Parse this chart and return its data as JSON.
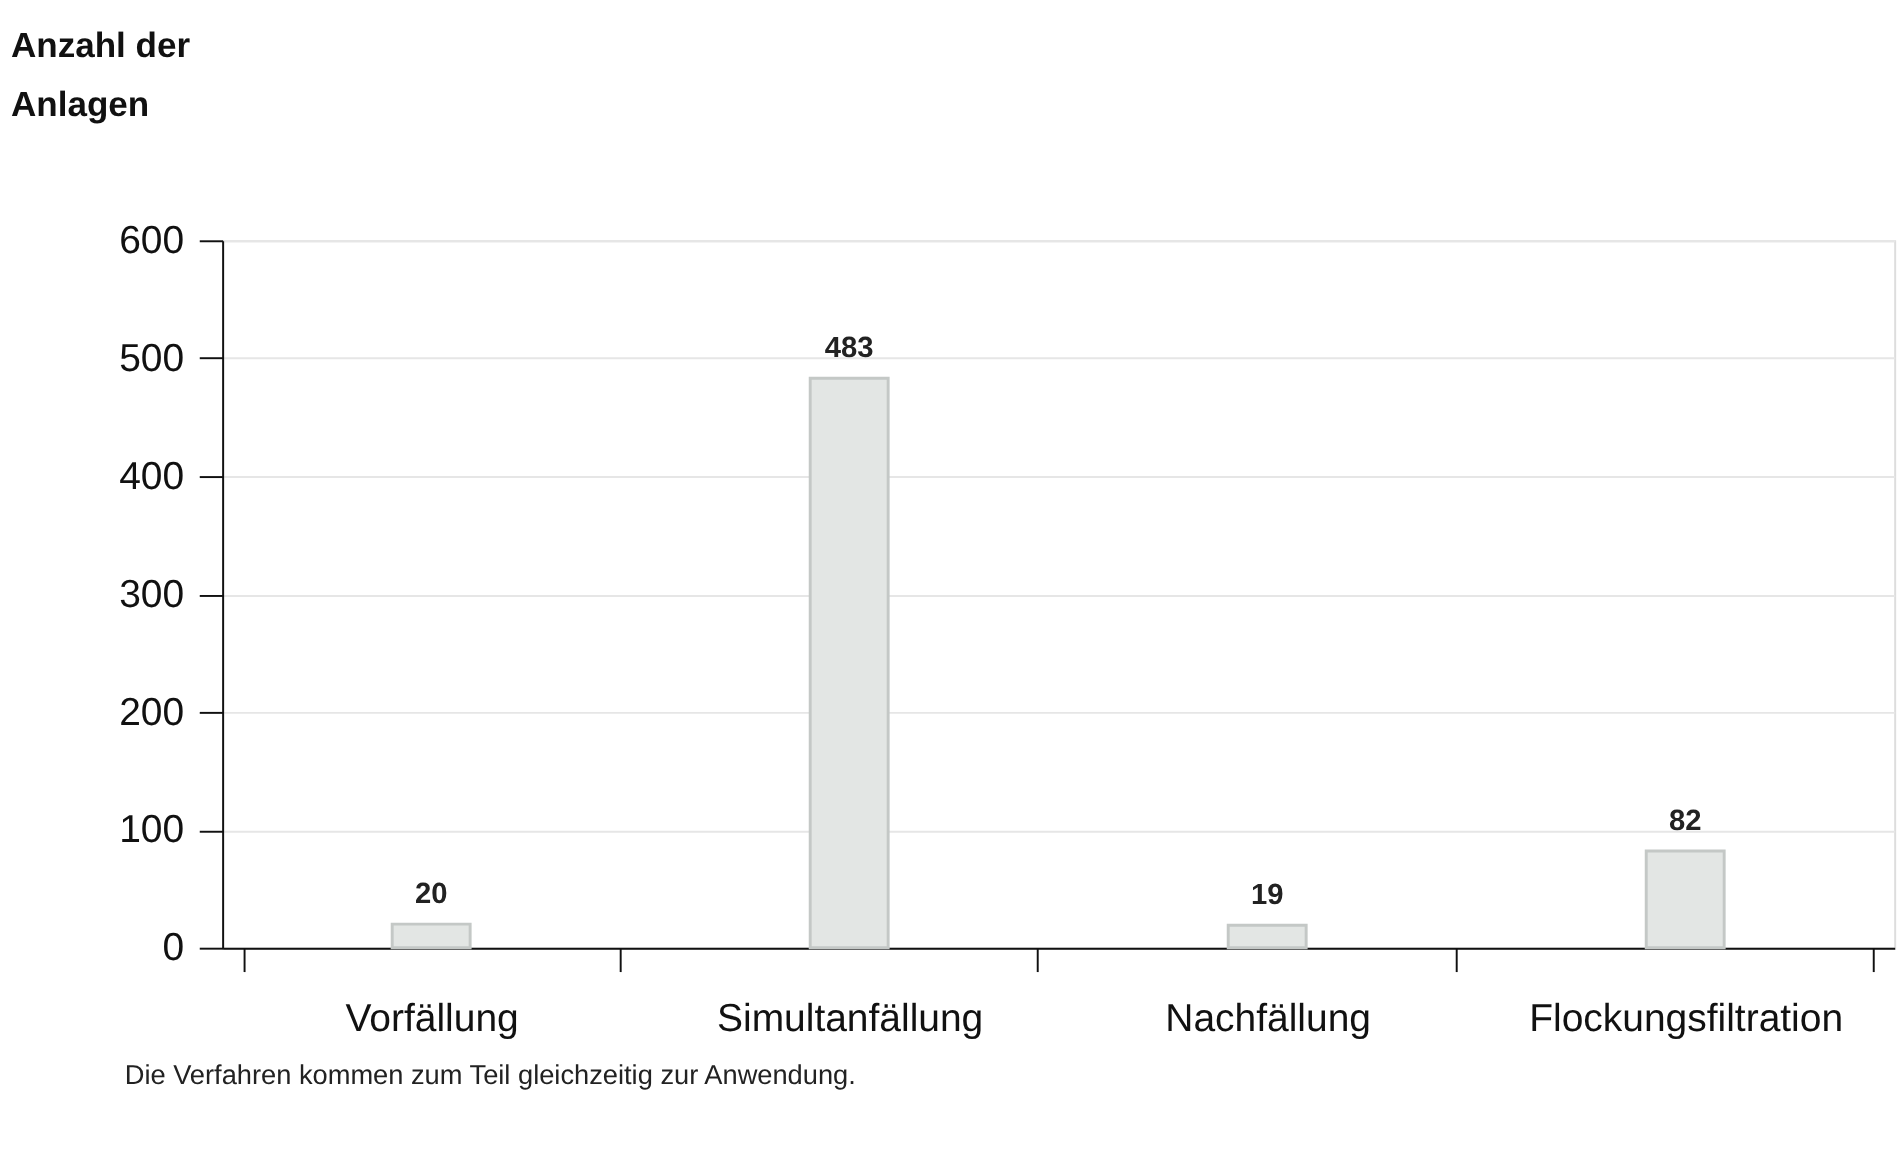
{
  "chart_data": {
    "type": "bar",
    "title": "Anzahl der Anlagen",
    "categories": [
      "Vorfällung",
      "Simultanfällung",
      "Nachfällung",
      "Flockungsfiltration"
    ],
    "values": [
      20,
      483,
      19,
      82
    ],
    "color": "#e3e6e4",
    "ylim": [
      0,
      600
    ],
    "yticks": [
      0,
      100,
      200,
      300,
      400,
      500,
      600
    ],
    "grid": "y",
    "data_labels": true,
    "annotations": [
      "Die Verfahren kommen zum Teil gleichzeitig zur Anwendung."
    ]
  }
}
